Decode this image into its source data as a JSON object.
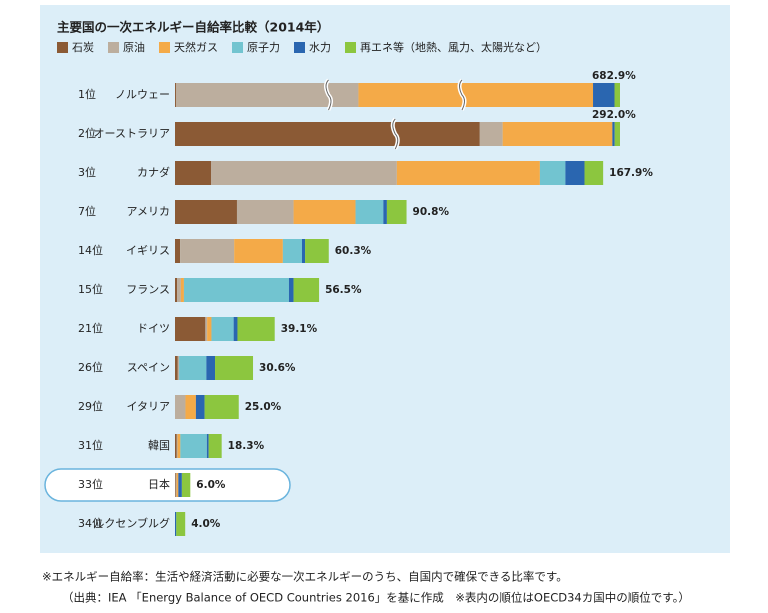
{
  "chart_data": {
    "type": "bar",
    "orientation": "horizontal",
    "stacked": true,
    "title": "主要国の一次エネルギー自給率比較（2014年）",
    "ranks": [
      "1位",
      "2位",
      "3位",
      "7位",
      "14位",
      "15位",
      "21位",
      "26位",
      "29位",
      "31位",
      "33位",
      "34位"
    ],
    "categories": [
      "ノルウェー",
      "オーストラリア",
      "カナダ",
      "アメリカ",
      "イギリス",
      "フランス",
      "ドイツ",
      "スペイン",
      "イタリア",
      "韓国",
      "日本",
      "ルクセンブルグ"
    ],
    "series": [
      {
        "name": "石炭",
        "color": "#8b5a35",
        "values": [
          1.5,
          200,
          14.2,
          24.3,
          2.0,
          0.8,
          11.9,
          1.1,
          0,
          0.7,
          0.2,
          0
        ]
      },
      {
        "name": "原油",
        "color": "#bcae9e",
        "values": [
          280,
          15,
          72.8,
          22.2,
          21.2,
          1.5,
          0.7,
          0.5,
          4.1,
          0.3,
          0.4,
          0
        ]
      },
      {
        "name": "天然ガス",
        "color": "#f4aa48",
        "values": [
          360,
          72,
          56.1,
          24.3,
          19.1,
          1.2,
          1.7,
          0,
          4.1,
          1.1,
          0.7,
          0
        ]
      },
      {
        "name": "原子力",
        "color": "#72c4d0",
        "values": [
          0,
          0,
          10,
          10.9,
          7.5,
          41.2,
          8.7,
          10.7,
          0,
          10.4,
          0,
          0
        ]
      },
      {
        "name": "水力",
        "color": "#2a66b0",
        "values": [
          33,
          1.5,
          7.5,
          1.4,
          1.2,
          1.8,
          1.5,
          3.4,
          3.4,
          0.7,
          1.4,
          0.5
        ]
      },
      {
        "name": "再エネ等（地熱、風力、太陽光など）",
        "color": "#8cc63f",
        "values": [
          8.4,
          3.5,
          7.3,
          7.7,
          9.3,
          10.0,
          14.6,
          14.9,
          13.4,
          5.1,
          3.3,
          3.5
        ]
      }
    ],
    "totals": [
      682.9,
      292.0,
      167.9,
      90.8,
      60.3,
      56.5,
      39.1,
      30.6,
      25.0,
      18.3,
      6.0,
      4.0
    ],
    "total_labels": [
      "682.9%",
      "292.0%",
      "167.9%",
      "90.8%",
      "60.3%",
      "56.5%",
      "39.1%",
      "30.6%",
      "25.0%",
      "18.3%",
      "6.0%",
      "4.0%"
    ],
    "highlight_index": 10,
    "notes": [
      "※エネルギー自給率：生活や経済活動に必要な一次エネルギーのうち、自国内で確保できる比率です。",
      "（出典：IEA 「Energy Balance of OECD Countries 2016」を基に作成　※表内の順位はOECD34カ国中の順位です。）"
    ]
  }
}
